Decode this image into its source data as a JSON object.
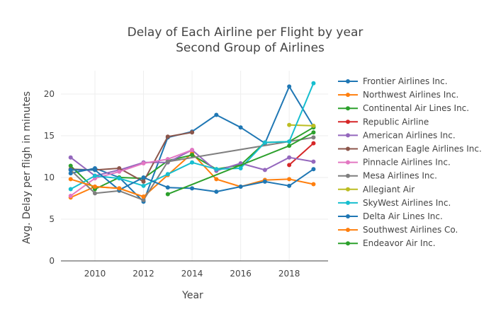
{
  "chart_data": {
    "type": "line",
    "title": "Delay of Each Airline per Flight by year",
    "subtitle": "Second Group of Airlines",
    "xlabel": "Year",
    "ylabel": "Avg. Delay per fligh in minutes",
    "xlim": [
      2008.6,
      2019.6
    ],
    "ylim": [
      0,
      22.8
    ],
    "x_ticks": [
      2010,
      2012,
      2014,
      2016,
      2018
    ],
    "y_ticks": [
      0,
      5,
      10,
      15,
      20
    ],
    "grid": true,
    "legend_position": "right",
    "series": [
      {
        "name": "Frontier Airlines Inc.",
        "color": "#1f77b4",
        "points": [
          [
            2009,
            10.5
          ],
          [
            2010,
            11.1
          ],
          [
            2011,
            10.0
          ],
          [
            2012,
            7.1
          ],
          [
            2013,
            14.8
          ],
          [
            2014,
            15.5
          ],
          [
            2015,
            17.5
          ],
          [
            2016,
            16.0
          ],
          [
            2017,
            14.1
          ],
          [
            2018,
            20.9
          ],
          [
            2019,
            16.1
          ]
        ]
      },
      {
        "name": "Northwest Airlines Inc.",
        "color": "#ff7f0e",
        "points": [
          [
            2009,
            7.6
          ],
          [
            2010,
            8.9
          ],
          [
            2011,
            8.7
          ],
          [
            2012,
            7.7
          ],
          [
            2013,
            10.3
          ],
          [
            2014,
            12.9
          ],
          [
            2015,
            9.8
          ],
          [
            2016,
            8.9
          ],
          [
            2017,
            9.7
          ],
          [
            2018,
            9.8
          ],
          [
            2019,
            9.2
          ]
        ]
      },
      {
        "name": "Continental Air Lines Inc.",
        "color": "#2ca02c",
        "points": [
          [
            2009,
            11.4
          ],
          [
            2010,
            8.6
          ],
          [
            2011,
            10.0
          ],
          [
            2012,
            9.9
          ],
          [
            2013,
            12.0
          ],
          [
            2014,
            12.7
          ],
          [
            2015,
            11.0
          ],
          [
            2016,
            11.5
          ],
          [
            2017,
            14.2
          ],
          [
            2018,
            14.3
          ],
          [
            2019,
            16.0
          ]
        ]
      },
      {
        "name": "Republic Airline",
        "color": "#d62728",
        "points": [
          [
            2018,
            11.5
          ],
          [
            2019,
            14.1
          ]
        ]
      },
      {
        "name": "American Airlines Inc.",
        "color": "#9467bd",
        "points": [
          [
            2009,
            12.4
          ],
          [
            2010,
            10.2
          ],
          [
            2011,
            10.9
          ],
          [
            2012,
            11.8
          ],
          [
            2013,
            11.8
          ],
          [
            2014,
            13.3
          ],
          [
            2015,
            10.8
          ],
          [
            2016,
            11.7
          ],
          [
            2017,
            10.9
          ],
          [
            2018,
            12.4
          ],
          [
            2019,
            11.9
          ]
        ]
      },
      {
        "name": "American Eagle Airlines Inc.",
        "color": "#8c564b",
        "points": [
          [
            2009,
            11.0
          ],
          [
            2010,
            10.9
          ],
          [
            2011,
            11.1
          ],
          [
            2012,
            9.5
          ],
          [
            2013,
            14.9
          ],
          [
            2014,
            15.4
          ]
        ]
      },
      {
        "name": "Pinnacle Airlines Inc.",
        "color": "#e377c2",
        "points": [
          [
            2009,
            7.8
          ],
          [
            2010,
            9.9
          ],
          [
            2011,
            10.7
          ],
          [
            2012,
            11.7
          ],
          [
            2013,
            12.2
          ],
          [
            2014,
            13.3
          ]
        ]
      },
      {
        "name": "Mesa Airlines Inc.",
        "color": "#7f7f7f",
        "points": [
          [
            2009,
            10.9
          ],
          [
            2010,
            8.1
          ],
          [
            2011,
            8.4
          ],
          [
            2012,
            7.3
          ],
          [
            2013,
            11.9
          ],
          [
            2019,
            14.8
          ]
        ]
      },
      {
        "name": "Allegiant Air",
        "color": "#bcbd22",
        "points": [
          [
            2018,
            16.3
          ],
          [
            2019,
            16.2
          ]
        ]
      },
      {
        "name": "SkyWest Airlines Inc.",
        "color": "#17becf",
        "points": [
          [
            2009,
            8.6
          ],
          [
            2010,
            10.2
          ],
          [
            2011,
            9.9
          ],
          [
            2012,
            9.0
          ],
          [
            2013,
            10.4
          ],
          [
            2014,
            11.8
          ],
          [
            2015,
            11.0
          ],
          [
            2016,
            11.1
          ],
          [
            2017,
            14.2
          ],
          [
            2018,
            14.3
          ],
          [
            2019,
            21.3
          ]
        ]
      },
      {
        "name": "Delta Air Lines Inc.",
        "color": "#1f77b4",
        "points": [
          [
            2009,
            10.9
          ],
          [
            2010,
            10.9
          ],
          [
            2011,
            8.5
          ],
          [
            2012,
            10.0
          ],
          [
            2013,
            8.8
          ],
          [
            2014,
            8.7
          ],
          [
            2015,
            8.3
          ],
          [
            2016,
            8.9
          ],
          [
            2017,
            9.5
          ],
          [
            2018,
            9.0
          ],
          [
            2019,
            11.0
          ]
        ]
      },
      {
        "name": "Southwest Airlines Co.",
        "color": "#ff7f0e",
        "points": [
          [
            2009,
            9.8
          ],
          [
            2010,
            8.9
          ],
          [
            2011,
            8.7
          ],
          [
            2012,
            7.7
          ]
        ]
      },
      {
        "name": "Endeavor Air Inc.",
        "color": "#2ca02c",
        "points": [
          [
            2013,
            8.0
          ],
          [
            2018,
            13.8
          ],
          [
            2019,
            15.4
          ]
        ]
      }
    ]
  }
}
